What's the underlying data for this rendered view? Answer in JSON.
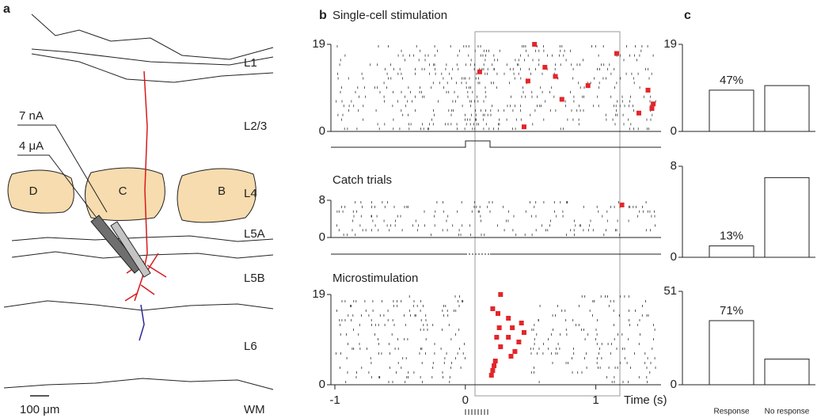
{
  "panel_a": {
    "label": "a",
    "layers": [
      "L1",
      "L2/3",
      "L4",
      "L5A",
      "L5B",
      "L6",
      "WM"
    ],
    "barrels": [
      "D",
      "C",
      "B"
    ],
    "electrodes": [
      "7 nA",
      "4 μA"
    ],
    "scale_bar": "100 μm"
  },
  "panel_b": {
    "label": "b",
    "xlim": [
      -1,
      1.5
    ],
    "xticks": [
      -1,
      0,
      1
    ],
    "xlabel": "Time (s)",
    "rasters": [
      {
        "title": "Single-cell stimulation",
        "ylim": [
          0,
          19
        ],
        "yticks": [
          0,
          19
        ],
        "first_spikes": {
          "x": [
            0.53,
            1.16,
            0.11,
            0.61,
            0.48,
            0.69,
            0.94,
            0.74,
            1.4,
            1.44,
            1.43,
            1.33,
            0.45
          ],
          "y": [
            19,
            17,
            13,
            14,
            11,
            12,
            10,
            7,
            9,
            6,
            5,
            4,
            1
          ]
        }
      },
      {
        "title": "Catch trials",
        "ylim": [
          0,
          8
        ],
        "yticks": [
          0,
          8
        ],
        "first_spikes": {
          "x": [
            1.2
          ],
          "y": [
            7
          ]
        }
      },
      {
        "title": "Microstimulation",
        "ylim": [
          0,
          19
        ],
        "yticks": [
          0,
          19
        ],
        "first_spikes": {
          "x": [
            0.27,
            0.21,
            0.25,
            0.33,
            0.43,
            0.26,
            0.36,
            0.45,
            0.24,
            0.33,
            0.41,
            0.27,
            0.38,
            0.35,
            0.23,
            0.22,
            0.21,
            0.2
          ],
          "y": [
            19,
            16,
            15,
            14,
            13,
            12,
            12,
            11,
            10,
            10,
            9,
            8,
            7,
            6,
            5,
            4,
            3,
            2
          ]
        }
      }
    ]
  },
  "panel_c": {
    "label": "c",
    "categories": [
      "Response",
      "No response"
    ],
    "charts": [
      {
        "ylim": [
          0,
          19
        ],
        "yticks": [
          0,
          19
        ],
        "values": [
          9,
          10
        ],
        "annotation": "47%"
      },
      {
        "ylim": [
          0,
          8
        ],
        "yticks": [
          0,
          8
        ],
        "values": [
          1,
          7
        ],
        "annotation": "13%"
      },
      {
        "ylim": [
          0,
          51
        ],
        "yticks": [
          0,
          51
        ],
        "values": [
          35,
          14
        ],
        "annotation": "71%"
      }
    ]
  }
}
